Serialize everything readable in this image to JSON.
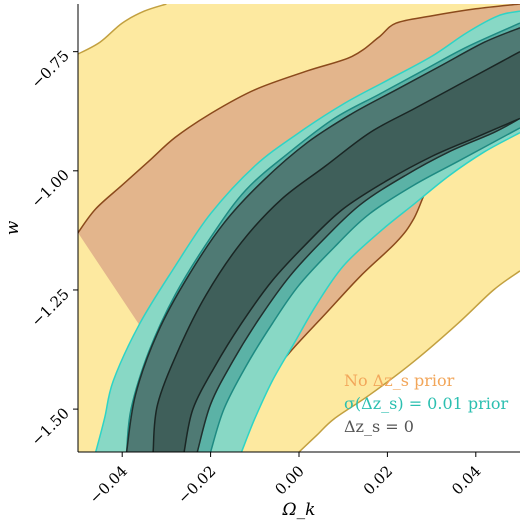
{
  "chart_data": {
    "type": "contour",
    "title": "",
    "xlabel": "Ω_k",
    "ylabel": "w",
    "xlim": [
      -0.05,
      0.05
    ],
    "ylim": [
      -1.59,
      -0.65
    ],
    "x_ticks": [
      -0.04,
      -0.02,
      0.0,
      0.02,
      0.04
    ],
    "x_tick_labels": [
      "−0.04",
      "−0.02",
      "0.00",
      "0.02",
      "0.04"
    ],
    "y_ticks": [
      -1.5,
      -1.25,
      -1.0,
      -0.75
    ],
    "y_tick_labels": [
      "−1.50",
      "−1.25",
      "−1.00",
      "−0.75"
    ],
    "grid": false,
    "legend_position": "bottom-right",
    "series": [
      {
        "name": "No Δz_s prior",
        "color": "#f2a65a",
        "fill_outer": "#fde9a0",
        "fill_inner": "#e3b58c",
        "edge_outer": "#c2a040",
        "edge_inner": "#8b4a1c",
        "outer": {
          "upper": [
            [
              -0.05,
              -0.755
            ],
            [
              -0.045,
              -0.73
            ],
            [
              -0.04,
              -0.69
            ],
            [
              -0.035,
              -0.665
            ],
            [
              -0.03,
              -0.65
            ]
          ],
          "lower": [
            [
              0.0,
              -1.59
            ],
            [
              0.004,
              -1.555
            ],
            [
              0.008,
              -1.52
            ],
            [
              0.016,
              -1.47
            ],
            [
              0.026,
              -1.4
            ],
            [
              0.036,
              -1.32
            ],
            [
              0.044,
              -1.25
            ],
            [
              0.05,
              -1.21
            ]
          ],
          "top_right": [
            [
              0.012,
              -0.65
            ],
            [
              0.05,
              -0.65
            ]
          ]
        },
        "inner": {
          "upper": [
            [
              -0.05,
              -1.13
            ],
            [
              -0.046,
              -1.08
            ],
            [
              -0.04,
              -1.03
            ],
            [
              -0.034,
              -0.98
            ],
            [
              -0.028,
              -0.93
            ],
            [
              -0.02,
              -0.88
            ],
            [
              -0.01,
              -0.83
            ],
            [
              0.002,
              -0.79
            ],
            [
              0.012,
              -0.76
            ],
            [
              0.018,
              -0.72
            ],
            [
              0.022,
              -0.69
            ],
            [
              0.03,
              -0.675
            ],
            [
              0.04,
              -0.66
            ],
            [
              0.05,
              -0.65
            ]
          ],
          "lower": [
            [
              -0.017,
              -1.59
            ],
            [
              -0.013,
              -1.52
            ],
            [
              -0.008,
              -1.45
            ],
            [
              -0.002,
              -1.38
            ],
            [
              0.006,
              -1.3
            ],
            [
              0.014,
              -1.22
            ],
            [
              0.022,
              -1.15
            ],
            [
              0.026,
              -1.1
            ],
            [
              0.03,
              -1.02
            ],
            [
              0.036,
              -0.97
            ],
            [
              0.042,
              -0.92
            ],
            [
              0.048,
              -0.88
            ],
            [
              0.05,
              -0.87
            ]
          ]
        }
      },
      {
        "name": "σ(Δz_s) = 0.01 prior",
        "color": "#2bbfb0",
        "fill_outer": "#88d8c5",
        "fill_inner": "#5bb2a6",
        "edge_outer": "#2ed4c6",
        "edge_inner": "#1e8a82",
        "outer": {
          "upper": [
            [
              -0.046,
              -1.59
            ],
            [
              -0.044,
              -1.52
            ],
            [
              -0.042,
              -1.44
            ],
            [
              -0.036,
              -1.32
            ],
            [
              -0.028,
              -1.2
            ],
            [
              -0.02,
              -1.09
            ],
            [
              -0.01,
              -0.99
            ],
            [
              0.0,
              -0.92
            ],
            [
              0.01,
              -0.86
            ],
            [
              0.02,
              -0.81
            ],
            [
              0.03,
              -0.76
            ],
            [
              0.038,
              -0.71
            ],
            [
              0.045,
              -0.675
            ],
            [
              0.05,
              -0.665
            ]
          ],
          "lower": [
            [
              -0.013,
              -1.59
            ],
            [
              -0.01,
              -1.52
            ],
            [
              -0.006,
              -1.44
            ],
            [
              -0.001,
              -1.36
            ],
            [
              0.004,
              -1.28
            ],
            [
              0.01,
              -1.2
            ],
            [
              0.018,
              -1.13
            ],
            [
              0.026,
              -1.07
            ],
            [
              0.034,
              -1.01
            ],
            [
              0.042,
              -0.96
            ],
            [
              0.05,
              -0.92
            ]
          ]
        },
        "inner": {
          "upper": [
            [
              -0.039,
              -1.59
            ],
            [
              -0.038,
              -1.5
            ],
            [
              -0.034,
              -1.38
            ],
            [
              -0.028,
              -1.26
            ],
            [
              -0.02,
              -1.14
            ],
            [
              -0.012,
              -1.04
            ],
            [
              -0.002,
              -0.96
            ],
            [
              0.008,
              -0.89
            ],
            [
              0.018,
              -0.84
            ],
            [
              0.028,
              -0.79
            ],
            [
              0.038,
              -0.74
            ],
            [
              0.05,
              -0.69
            ]
          ],
          "lower": [
            [
              -0.02,
              -1.59
            ],
            [
              -0.017,
              -1.5
            ],
            [
              -0.012,
              -1.41
            ],
            [
              -0.006,
              -1.32
            ],
            [
              0.0,
              -1.24
            ],
            [
              0.008,
              -1.16
            ],
            [
              0.016,
              -1.09
            ],
            [
              0.026,
              -1.03
            ],
            [
              0.036,
              -0.98
            ],
            [
              0.05,
              -0.91
            ]
          ]
        }
      },
      {
        "name": "Δz_s = 0",
        "color": "#555555",
        "fill_outer": "#4f7a74",
        "fill_inner": "#3f5f5a",
        "edge_outer": "#20302e",
        "edge_inner": "#1a2624",
        "outer": {
          "upper": [
            [
              -0.039,
              -1.59
            ],
            [
              -0.037,
              -1.47
            ],
            [
              -0.032,
              -1.34
            ],
            [
              -0.025,
              -1.22
            ],
            [
              -0.017,
              -1.11
            ],
            [
              -0.008,
              -1.02
            ],
            [
              0.002,
              -0.94
            ],
            [
              0.012,
              -0.88
            ],
            [
              0.022,
              -0.83
            ],
            [
              0.032,
              -0.78
            ],
            [
              0.042,
              -0.73
            ],
            [
              0.05,
              -0.7
            ]
          ],
          "lower": [
            [
              -0.023,
              -1.59
            ],
            [
              -0.02,
              -1.49
            ],
            [
              -0.015,
              -1.4
            ],
            [
              -0.009,
              -1.31
            ],
            [
              -0.002,
              -1.22
            ],
            [
              0.006,
              -1.14
            ],
            [
              0.014,
              -1.07
            ],
            [
              0.024,
              -1.01
            ],
            [
              0.034,
              -0.96
            ],
            [
              0.044,
              -0.92
            ],
            [
              0.05,
              -0.89
            ]
          ]
        },
        "inner": {
          "upper": [
            [
              -0.033,
              -1.59
            ],
            [
              -0.032,
              -1.49
            ],
            [
              -0.027,
              -1.37
            ],
            [
              -0.021,
              -1.26
            ],
            [
              -0.013,
              -1.15
            ],
            [
              -0.004,
              -1.06
            ],
            [
              0.006,
              -0.99
            ],
            [
              0.016,
              -0.92
            ],
            [
              0.026,
              -0.87
            ],
            [
              0.036,
              -0.82
            ],
            [
              0.046,
              -0.77
            ],
            [
              0.05,
              -0.75
            ]
          ],
          "lower": [
            [
              -0.026,
              -1.59
            ],
            [
              -0.024,
              -1.5
            ],
            [
              -0.019,
              -1.41
            ],
            [
              -0.013,
              -1.32
            ],
            [
              -0.006,
              -1.23
            ],
            [
              0.002,
              -1.15
            ],
            [
              0.01,
              -1.08
            ],
            [
              0.02,
              -1.02
            ],
            [
              0.03,
              -0.97
            ],
            [
              0.04,
              -0.93
            ],
            [
              0.05,
              -0.89
            ]
          ]
        }
      }
    ]
  }
}
